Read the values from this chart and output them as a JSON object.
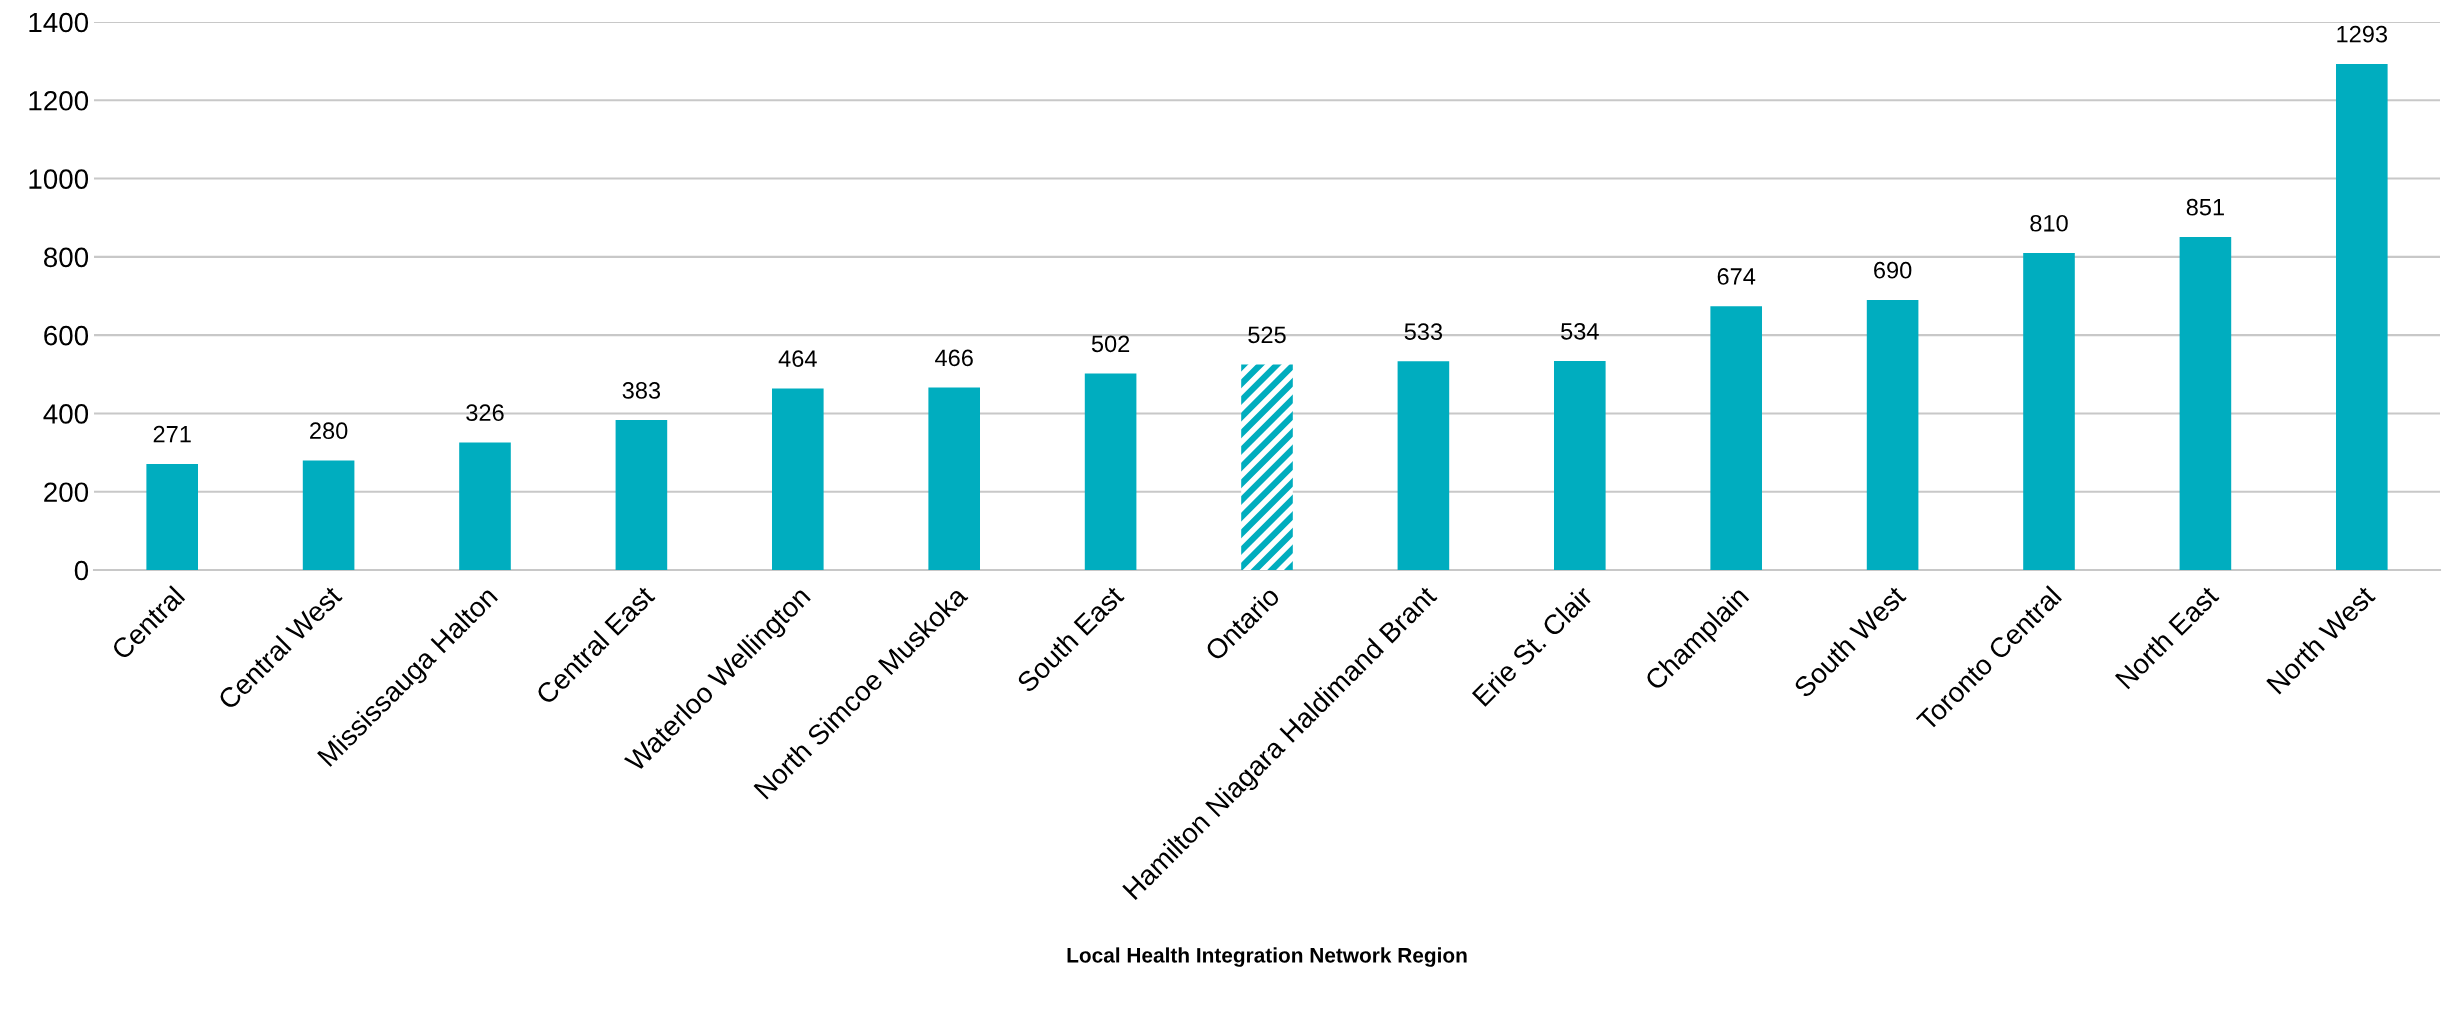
{
  "chart_data": {
    "type": "bar",
    "xlabel": "Local Health Integration Network Region",
    "categories": [
      "Central",
      "Central West",
      "Mississauga Halton",
      "Central East",
      "Waterloo Wellington",
      "North Simcoe Muskoka",
      "South East",
      "Ontario",
      "Hamilton Niagara Haldimand Brant",
      "Erie St. Clair",
      "Champlain",
      "South West",
      "Toronto Central",
      "North East",
      "North West"
    ],
    "series": [
      {
        "color": "#00adbf",
        "values": [
          271,
          280,
          326,
          383,
          464,
          466,
          502,
          525,
          533,
          534,
          674,
          690,
          810,
          851,
          1293
        ],
        "colors": [
          "#00adbf",
          "#00adbf",
          "#00adbf",
          "#00adbf",
          "#00adbf",
          "#00adbf",
          "#00adbf",
          "#00adbe",
          "#00adbf",
          "#00adbf",
          "#00adbf",
          "#00adbf",
          "#00adbf",
          "#00adbf",
          "#00adbf"
        ]
      }
    ],
    "ylim": [
      0,
      1400
    ],
    "yticks": [
      0,
      200,
      400,
      600,
      800,
      1000,
      1200,
      1400
    ],
    "grid": "y",
    "data_labels": true,
    "legend": false
  }
}
